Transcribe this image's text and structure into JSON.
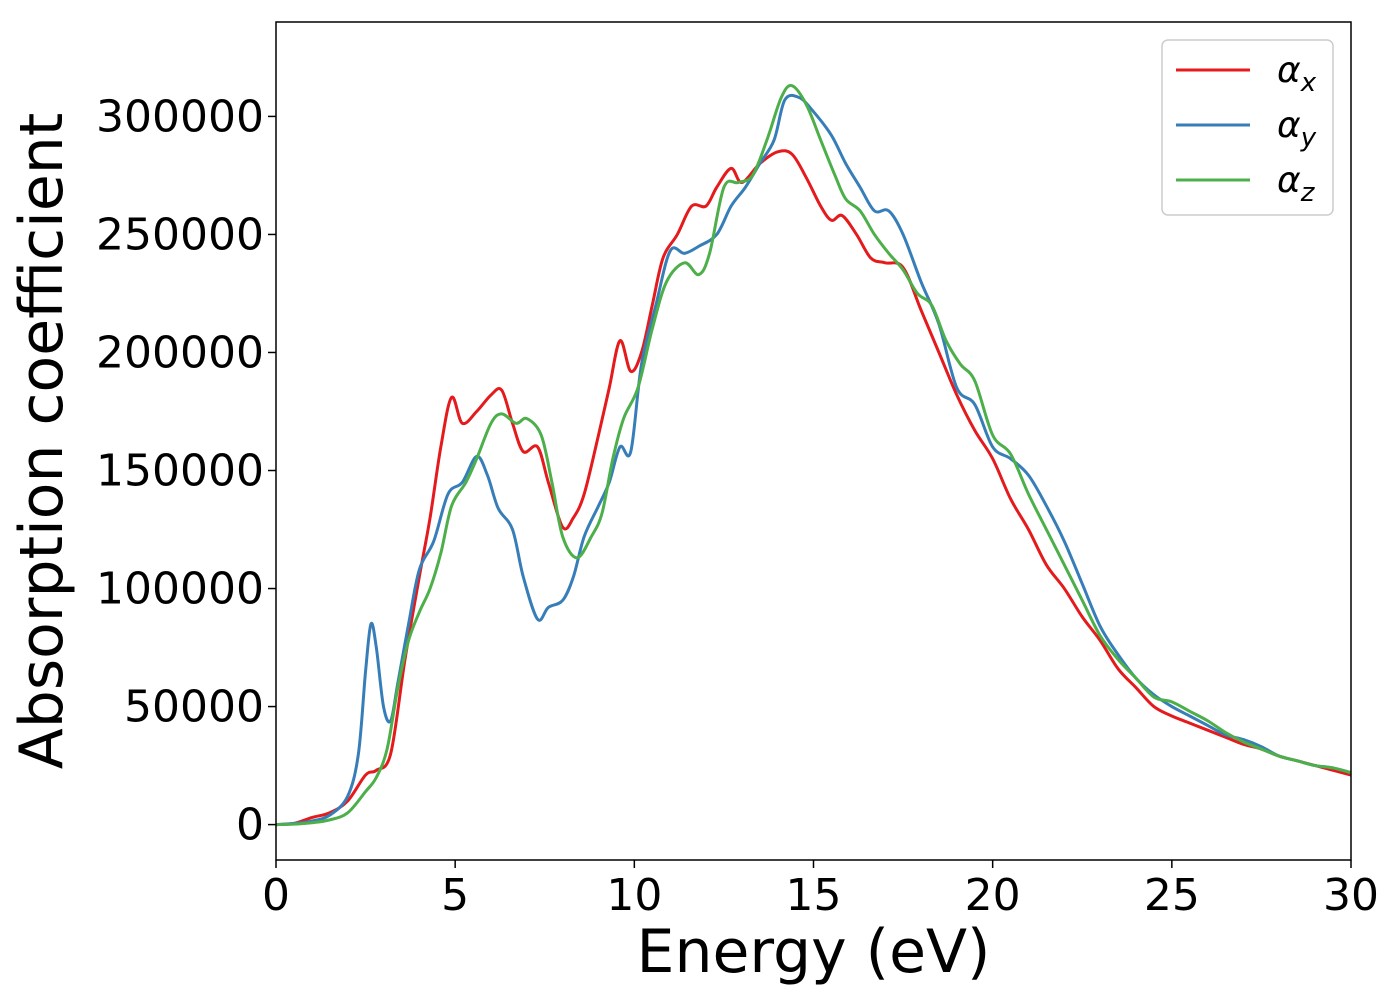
{
  "chart_data": {
    "type": "line",
    "title": "",
    "xlabel": "Energy (eV)",
    "ylabel": "Absorption coefficient",
    "xlim": [
      0,
      30
    ],
    "ylim": [
      -15000,
      340000
    ],
    "xticks": [
      0,
      5,
      10,
      15,
      20,
      25,
      30
    ],
    "yticks": [
      0,
      50000,
      100000,
      150000,
      200000,
      250000,
      300000
    ],
    "xtick_labels": [
      "0",
      "5",
      "10",
      "15",
      "20",
      "25",
      "30"
    ],
    "ytick_labels": [
      "0",
      "50000",
      "100000",
      "150000",
      "200000",
      "250000",
      "300000"
    ],
    "grid": false,
    "legend_position": "top-right",
    "series": [
      {
        "name": "α_x",
        "symbol": "α",
        "subscript": "x",
        "color": "#e41a1c",
        "points": [
          [
            0,
            0
          ],
          [
            0.5,
            500
          ],
          [
            1.0,
            3000
          ],
          [
            1.5,
            5000
          ],
          [
            2.0,
            10000
          ],
          [
            2.5,
            21000
          ],
          [
            2.8,
            23000
          ],
          [
            3.2,
            30000
          ],
          [
            3.6,
            70000
          ],
          [
            4.0,
            105000
          ],
          [
            4.3,
            130000
          ],
          [
            4.6,
            160000
          ],
          [
            4.9,
            181000
          ],
          [
            5.2,
            170000
          ],
          [
            5.6,
            175000
          ],
          [
            6.0,
            182000
          ],
          [
            6.3,
            184000
          ],
          [
            6.6,
            170000
          ],
          [
            6.9,
            158000
          ],
          [
            7.3,
            160000
          ],
          [
            7.6,
            145000
          ],
          [
            8.0,
            126000
          ],
          [
            8.3,
            130000
          ],
          [
            8.6,
            140000
          ],
          [
            9.0,
            165000
          ],
          [
            9.3,
            185000
          ],
          [
            9.6,
            205000
          ],
          [
            9.9,
            192000
          ],
          [
            10.2,
            200000
          ],
          [
            10.5,
            220000
          ],
          [
            10.8,
            240000
          ],
          [
            11.2,
            250000
          ],
          [
            11.6,
            262000
          ],
          [
            12.0,
            262000
          ],
          [
            12.3,
            270000
          ],
          [
            12.7,
            278000
          ],
          [
            13.0,
            272000
          ],
          [
            13.5,
            280000
          ],
          [
            14.0,
            285000
          ],
          [
            14.4,
            284000
          ],
          [
            14.8,
            274000
          ],
          [
            15.2,
            262000
          ],
          [
            15.5,
            256000
          ],
          [
            15.8,
            258000
          ],
          [
            16.2,
            250000
          ],
          [
            16.6,
            240000
          ],
          [
            17.0,
            238000
          ],
          [
            17.5,
            236000
          ],
          [
            18.0,
            218000
          ],
          [
            18.5,
            200000
          ],
          [
            19.0,
            182000
          ],
          [
            19.5,
            167000
          ],
          [
            20.0,
            155000
          ],
          [
            20.5,
            138000
          ],
          [
            21.0,
            125000
          ],
          [
            21.5,
            110000
          ],
          [
            22.0,
            100000
          ],
          [
            22.5,
            88000
          ],
          [
            23.0,
            78000
          ],
          [
            23.5,
            66000
          ],
          [
            24.0,
            58000
          ],
          [
            24.5,
            50000
          ],
          [
            25.0,
            46000
          ],
          [
            25.5,
            43000
          ],
          [
            26.0,
            40000
          ],
          [
            26.5,
            37000
          ],
          [
            27.0,
            34000
          ],
          [
            27.5,
            32000
          ],
          [
            28.0,
            29000
          ],
          [
            28.5,
            27000
          ],
          [
            29.0,
            25000
          ],
          [
            29.5,
            23000
          ],
          [
            30.0,
            21000
          ]
        ]
      },
      {
        "name": "α_y",
        "symbol": "α",
        "subscript": "y",
        "color": "#377eb8",
        "points": [
          [
            0,
            0
          ],
          [
            0.5,
            500
          ],
          [
            1.0,
            1500
          ],
          [
            1.5,
            4000
          ],
          [
            2.0,
            12000
          ],
          [
            2.3,
            30000
          ],
          [
            2.5,
            65000
          ],
          [
            2.65,
            85000
          ],
          [
            2.8,
            75000
          ],
          [
            3.0,
            50000
          ],
          [
            3.2,
            44000
          ],
          [
            3.4,
            60000
          ],
          [
            3.7,
            85000
          ],
          [
            4.0,
            108000
          ],
          [
            4.4,
            120000
          ],
          [
            4.8,
            140000
          ],
          [
            5.2,
            145000
          ],
          [
            5.6,
            156000
          ],
          [
            5.9,
            148000
          ],
          [
            6.2,
            134000
          ],
          [
            6.6,
            125000
          ],
          [
            6.9,
            105000
          ],
          [
            7.3,
            87000
          ],
          [
            7.6,
            92000
          ],
          [
            8.0,
            95000
          ],
          [
            8.3,
            105000
          ],
          [
            8.6,
            122000
          ],
          [
            9.0,
            135000
          ],
          [
            9.3,
            145000
          ],
          [
            9.6,
            160000
          ],
          [
            9.9,
            158000
          ],
          [
            10.2,
            195000
          ],
          [
            10.6,
            220000
          ],
          [
            11.0,
            243000
          ],
          [
            11.4,
            242000
          ],
          [
            11.8,
            245000
          ],
          [
            12.3,
            250000
          ],
          [
            12.7,
            262000
          ],
          [
            13.1,
            270000
          ],
          [
            13.5,
            280000
          ],
          [
            13.9,
            290000
          ],
          [
            14.2,
            307000
          ],
          [
            14.6,
            308000
          ],
          [
            15.0,
            302000
          ],
          [
            15.5,
            292000
          ],
          [
            15.9,
            280000
          ],
          [
            16.3,
            270000
          ],
          [
            16.7,
            260000
          ],
          [
            17.1,
            260000
          ],
          [
            17.5,
            250000
          ],
          [
            18.0,
            230000
          ],
          [
            18.5,
            212000
          ],
          [
            19.0,
            185000
          ],
          [
            19.5,
            178000
          ],
          [
            20.0,
            160000
          ],
          [
            20.5,
            155000
          ],
          [
            21.0,
            148000
          ],
          [
            21.5,
            135000
          ],
          [
            22.0,
            120000
          ],
          [
            22.5,
            102000
          ],
          [
            23.0,
            84000
          ],
          [
            23.5,
            72000
          ],
          [
            24.0,
            62000
          ],
          [
            24.5,
            55000
          ],
          [
            25.0,
            50000
          ],
          [
            25.5,
            46000
          ],
          [
            26.0,
            42000
          ],
          [
            26.5,
            38000
          ],
          [
            27.0,
            36000
          ],
          [
            27.5,
            33000
          ],
          [
            28.0,
            29000
          ],
          [
            28.5,
            27000
          ],
          [
            29.0,
            25000
          ],
          [
            29.5,
            24000
          ],
          [
            30.0,
            22000
          ]
        ]
      },
      {
        "name": "α_z",
        "symbol": "α",
        "subscript": "z",
        "color": "#4daf4a",
        "points": [
          [
            0,
            0
          ],
          [
            0.5,
            200
          ],
          [
            1.0,
            800
          ],
          [
            1.5,
            2000
          ],
          [
            2.0,
            5000
          ],
          [
            2.5,
            14000
          ],
          [
            2.8,
            20000
          ],
          [
            3.1,
            32000
          ],
          [
            3.4,
            58000
          ],
          [
            3.7,
            78000
          ],
          [
            4.0,
            90000
          ],
          [
            4.3,
            100000
          ],
          [
            4.6,
            115000
          ],
          [
            4.9,
            135000
          ],
          [
            5.3,
            145000
          ],
          [
            5.6,
            155000
          ],
          [
            6.0,
            170000
          ],
          [
            6.3,
            174000
          ],
          [
            6.7,
            170000
          ],
          [
            7.0,
            172000
          ],
          [
            7.4,
            165000
          ],
          [
            7.7,
            145000
          ],
          [
            8.0,
            122000
          ],
          [
            8.4,
            113000
          ],
          [
            8.8,
            122000
          ],
          [
            9.1,
            132000
          ],
          [
            9.4,
            155000
          ],
          [
            9.7,
            172000
          ],
          [
            10.1,
            185000
          ],
          [
            10.5,
            210000
          ],
          [
            10.9,
            230000
          ],
          [
            11.4,
            238000
          ],
          [
            11.8,
            233000
          ],
          [
            12.1,
            242000
          ],
          [
            12.5,
            270000
          ],
          [
            12.9,
            272000
          ],
          [
            13.3,
            275000
          ],
          [
            13.7,
            290000
          ],
          [
            14.1,
            308000
          ],
          [
            14.4,
            313000
          ],
          [
            14.8,
            305000
          ],
          [
            15.2,
            290000
          ],
          [
            15.6,
            275000
          ],
          [
            15.9,
            265000
          ],
          [
            16.3,
            260000
          ],
          [
            16.7,
            250000
          ],
          [
            17.1,
            242000
          ],
          [
            17.5,
            235000
          ],
          [
            17.9,
            225000
          ],
          [
            18.3,
            220000
          ],
          [
            18.7,
            205000
          ],
          [
            19.1,
            195000
          ],
          [
            19.5,
            188000
          ],
          [
            20.0,
            165000
          ],
          [
            20.5,
            157000
          ],
          [
            21.0,
            140000
          ],
          [
            21.5,
            125000
          ],
          [
            22.0,
            110000
          ],
          [
            22.5,
            95000
          ],
          [
            23.0,
            80000
          ],
          [
            23.5,
            70000
          ],
          [
            24.0,
            62000
          ],
          [
            24.5,
            54000
          ],
          [
            25.0,
            52000
          ],
          [
            25.5,
            48000
          ],
          [
            26.0,
            44000
          ],
          [
            26.5,
            39000
          ],
          [
            27.0,
            35000
          ],
          [
            27.5,
            32000
          ],
          [
            28.0,
            29000
          ],
          [
            28.5,
            27000
          ],
          [
            29.0,
            25000
          ],
          [
            29.5,
            24000
          ],
          [
            30.0,
            22000
          ]
        ]
      }
    ]
  }
}
